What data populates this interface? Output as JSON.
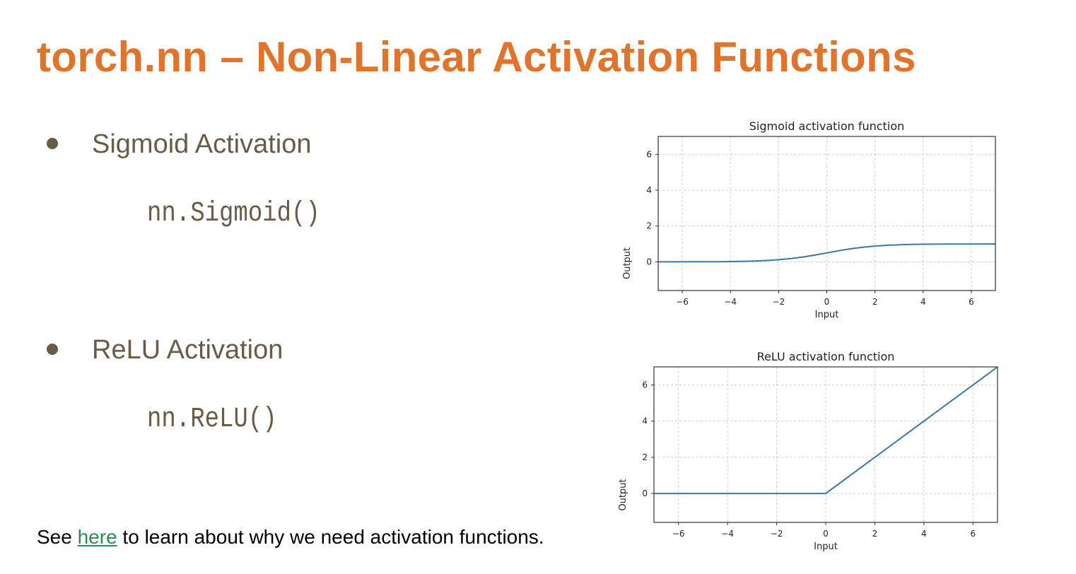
{
  "slide": {
    "title": "torch.nn – Non-Linear Activation Functions",
    "bullets": [
      {
        "label": "Sigmoid Activation",
        "code": "nn.Sigmoid()"
      },
      {
        "label": "ReLU Activation",
        "code": "nn.ReLU()"
      }
    ],
    "note": {
      "prefix": "See ",
      "link": "here",
      "suffix": " to learn about why we need activation functions."
    }
  },
  "colors": {
    "title": "#E0742C",
    "text": "#685C47",
    "link": "#2E8B57",
    "line": "#3A78A8"
  },
  "chart_data": [
    {
      "type": "line",
      "title": "Sigmoid activation function",
      "xlabel": "Input",
      "ylabel": "Output",
      "xlim": [
        -7,
        7
      ],
      "ylim": [
        -1.6,
        7
      ],
      "xticks": [
        -6,
        -4,
        -2,
        0,
        2,
        4,
        6
      ],
      "xtick_labels": [
        "−6",
        "−4",
        "−2",
        "0",
        "2",
        "4",
        "6"
      ],
      "yticks": [
        0,
        2,
        4,
        6
      ],
      "ytick_labels": [
        "0",
        "2",
        "4",
        "6"
      ],
      "grid": true,
      "x": [
        -7,
        -6.5,
        -6,
        -5.5,
        -5,
        -4.5,
        -4,
        -3.5,
        -3,
        -2.5,
        -2,
        -1.5,
        -1,
        -0.5,
        0,
        0.5,
        1,
        1.5,
        2,
        2.5,
        3,
        3.5,
        4,
        4.5,
        5,
        5.5,
        6,
        6.5,
        7
      ],
      "y": [
        0.0009,
        0.0015,
        0.0025,
        0.0041,
        0.0067,
        0.011,
        0.018,
        0.0293,
        0.0474,
        0.0759,
        0.1192,
        0.1824,
        0.2689,
        0.3775,
        0.5,
        0.6225,
        0.7311,
        0.8176,
        0.8808,
        0.9241,
        0.9526,
        0.9707,
        0.982,
        0.989,
        0.9933,
        0.9959,
        0.9975,
        0.9985,
        0.9991
      ]
    },
    {
      "type": "line",
      "title": "ReLU activation function",
      "xlabel": "Input",
      "ylabel": "Output",
      "xlim": [
        -7,
        7
      ],
      "ylim": [
        -1.6,
        7
      ],
      "xticks": [
        -6,
        -4,
        -2,
        0,
        2,
        4,
        6
      ],
      "xtick_labels": [
        "−6",
        "−4",
        "−2",
        "0",
        "2",
        "4",
        "6"
      ],
      "yticks": [
        0,
        2,
        4,
        6
      ],
      "ytick_labels": [
        "0",
        "2",
        "4",
        "6"
      ],
      "grid": true,
      "x": [
        -7,
        0,
        7
      ],
      "y": [
        0,
        0,
        7
      ]
    }
  ]
}
